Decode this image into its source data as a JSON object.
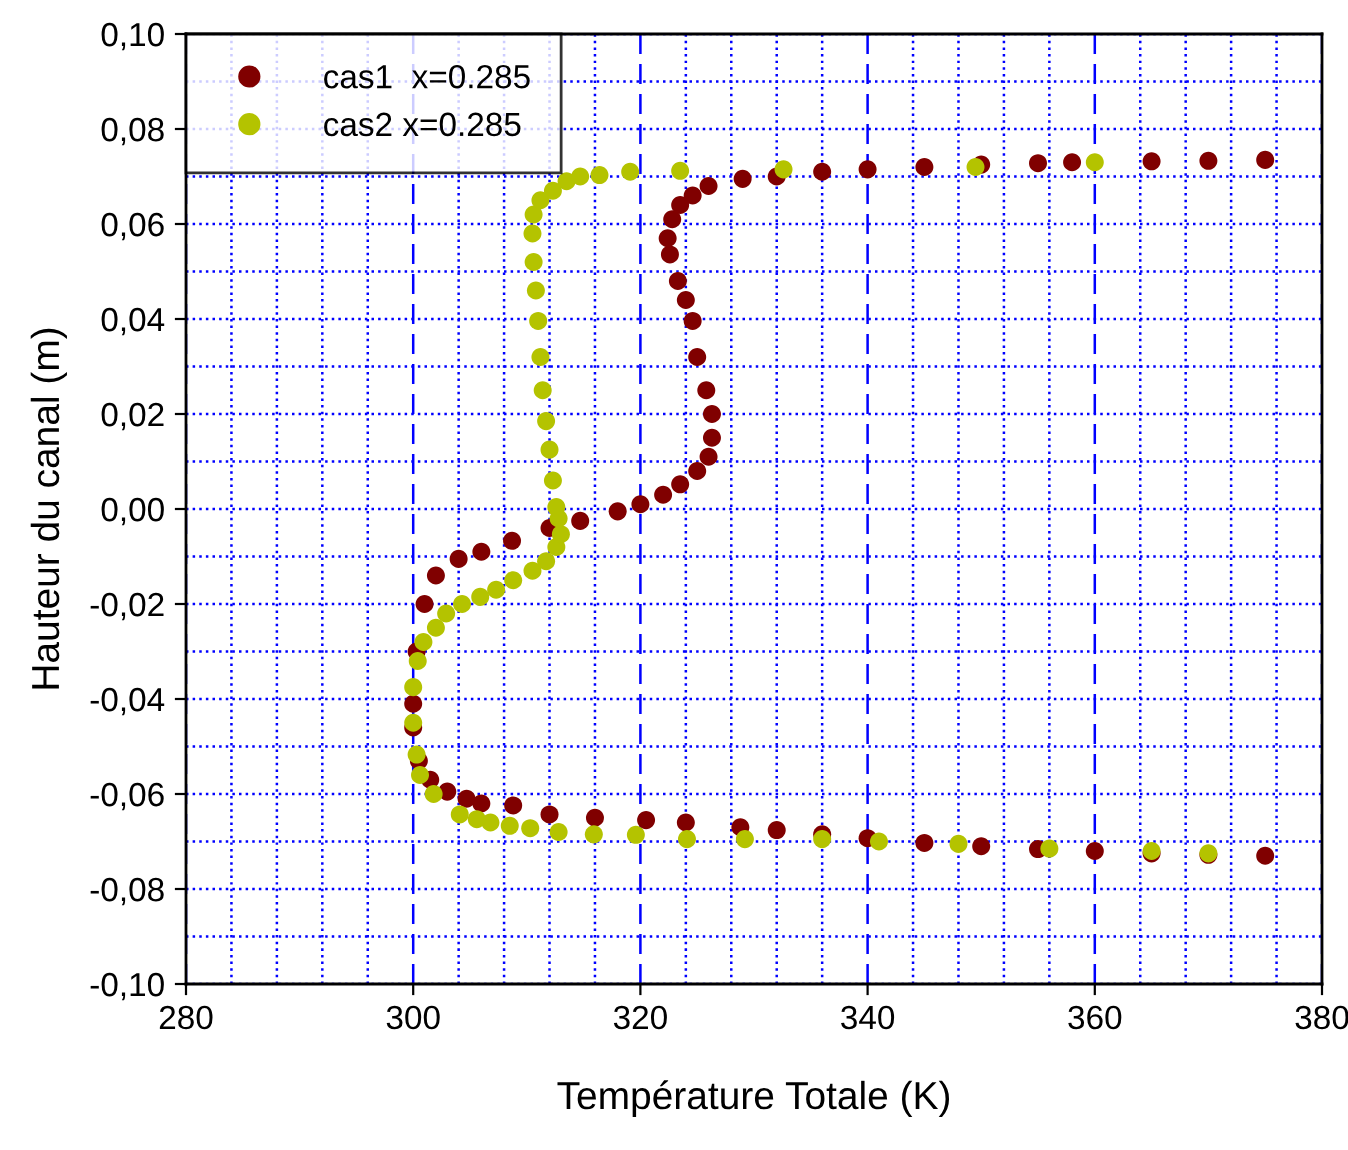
{
  "chart_data": {
    "type": "scatter",
    "xlabel": "Température Totale (K)",
    "ylabel": "Hauteur du canal (m)",
    "xlim": [
      280,
      380
    ],
    "xticks": [
      280,
      300,
      320,
      340,
      360,
      380
    ],
    "ylim": [
      -0.1,
      0.1
    ],
    "yticks": [
      {
        "value": -0.1,
        "label": "-0,10"
      },
      {
        "value": -0.08,
        "label": "-0,08"
      },
      {
        "value": -0.06,
        "label": "-0,06"
      },
      {
        "value": -0.04,
        "label": "-0,04"
      },
      {
        "value": -0.02,
        "label": "-0,02"
      },
      {
        "value": 0,
        "label": "0,00"
      },
      {
        "value": 0.02,
        "label": "0,02"
      },
      {
        "value": 0.04,
        "label": "0,04"
      },
      {
        "value": 0.06,
        "label": "0,06"
      },
      {
        "value": 0.08,
        "label": "0,08"
      },
      {
        "value": 0.1,
        "label": "0,10"
      }
    ],
    "grid": true,
    "legend": "top left",
    "marker": "circle",
    "series": [
      {
        "name": "cas1  x=0.285",
        "color": "#800000",
        "x": [
          375,
          370,
          365,
          360,
          355,
          350,
          345,
          340,
          336,
          332,
          328.8,
          324,
          320.5,
          316,
          312,
          308.8,
          306,
          304.7,
          303,
          301.5,
          300.5,
          300,
          300,
          300.3,
          301,
          302,
          304,
          306,
          308.7,
          312,
          314.7,
          318,
          320,
          322,
          323.5,
          325,
          326,
          326.3,
          326.3,
          325.8,
          325,
          324.6,
          324,
          323.3,
          322.6,
          322.4,
          322.8,
          323.5,
          324.6,
          326,
          329,
          332,
          336,
          340,
          345,
          350,
          355,
          358,
          365,
          370,
          375
        ],
        "values": [
          -0.073,
          -0.0728,
          -0.0725,
          -0.072,
          -0.0716,
          -0.071,
          -0.0703,
          -0.0693,
          -0.0685,
          -0.0676,
          -0.067,
          -0.066,
          -0.0655,
          -0.065,
          -0.0643,
          -0.0624,
          -0.062,
          -0.061,
          -0.0595,
          -0.057,
          -0.053,
          -0.046,
          -0.041,
          -0.03,
          -0.02,
          -0.014,
          -0.0105,
          -0.009,
          -0.0067,
          -0.004,
          -0.0025,
          -0.0005,
          0.001,
          0.003,
          0.0052,
          0.008,
          0.011,
          0.015,
          0.02,
          0.025,
          0.032,
          0.0396,
          0.044,
          0.048,
          0.0536,
          0.057,
          0.061,
          0.064,
          0.066,
          0.068,
          0.0695,
          0.07,
          0.071,
          0.0715,
          0.072,
          0.0725,
          0.0728,
          0.073,
          0.0732,
          0.0733,
          0.0735
        ]
      },
      {
        "name": "cas2 x=0.285",
        "color": "#b4c300",
        "x": [
          370,
          365,
          356,
          348,
          341,
          336,
          329.2,
          324.1,
          319.6,
          315.9,
          312.8,
          310.3,
          308.5,
          306.8,
          305.6,
          304.1,
          301.8,
          300.6,
          300.3,
          300,
          300,
          300.4,
          300.9,
          302,
          302.9,
          304.3,
          305.9,
          307.3,
          308.8,
          310.5,
          311.7,
          312.6,
          313,
          312.8,
          312.6,
          312.3,
          312,
          311.7,
          311.4,
          311.2,
          311,
          310.8,
          310.6,
          310.5,
          310.6,
          311.2,
          312.3,
          313.5,
          314.7,
          316.4,
          319.1,
          323.5,
          332.6,
          349.5,
          360
        ],
        "values": [
          -0.0725,
          -0.072,
          -0.0715,
          -0.0705,
          -0.07,
          -0.0695,
          -0.0695,
          -0.0695,
          -0.0686,
          -0.0685,
          -0.068,
          -0.0672,
          -0.0667,
          -0.066,
          -0.0653,
          -0.0643,
          -0.06,
          -0.056,
          -0.0517,
          -0.045,
          -0.0375,
          -0.032,
          -0.028,
          -0.025,
          -0.022,
          -0.02,
          -0.0185,
          -0.017,
          -0.015,
          -0.013,
          -0.011,
          -0.008,
          -0.0053,
          -0.002,
          0.0004,
          0.006,
          0.0125,
          0.0185,
          0.025,
          0.032,
          0.0396,
          0.046,
          0.052,
          0.058,
          0.062,
          0.065,
          0.067,
          0.069,
          0.07,
          0.0703,
          0.071,
          0.0712,
          0.0715,
          0.072,
          0.073
        ]
      }
    ]
  }
}
